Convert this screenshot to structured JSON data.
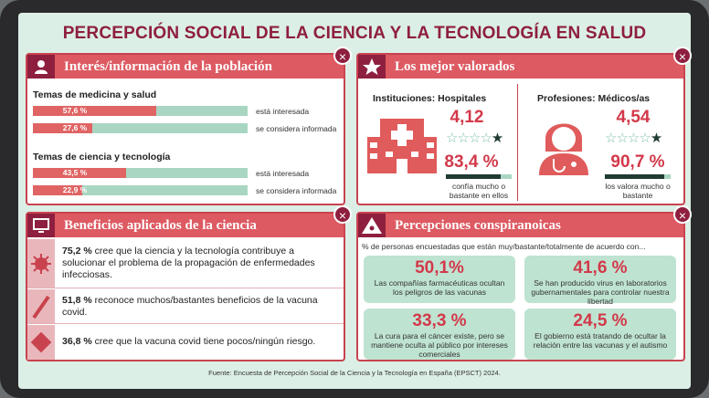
{
  "title": "PERCEPCIÓN SOCIAL DE LA CIENCIA Y LA TECNOLOGÍA EN SALUD",
  "interest": {
    "title": "Interés/información de la población",
    "groups": [
      {
        "label": "Temas de medicina y salud",
        "bars": [
          {
            "value": 57.6,
            "label": "57,6 %",
            "caption": "está interesada"
          },
          {
            "value": 27.6,
            "label": "27,6 %",
            "caption": "se considera informada"
          }
        ]
      },
      {
        "label": "Temas de ciencia y tecnología",
        "bars": [
          {
            "value": 43.5,
            "label": "43,5 %",
            "caption": "está interesada"
          },
          {
            "value": 22.9,
            "label": "22,9 %",
            "caption": "se considera informada"
          }
        ]
      }
    ]
  },
  "best": {
    "title": "Los mejor valorados",
    "items": [
      {
        "heading": "Instituciones: Hospitales",
        "score": {
          "value": 4.12,
          "label": "4,12"
        },
        "percent": {
          "value": 83.4,
          "label": "83,4 %"
        },
        "caption": "confía mucho o bastante en ellos"
      },
      {
        "heading": "Profesiones: Médicos/as",
        "score": {
          "value": 4.54,
          "label": "4,54"
        },
        "percent": {
          "value": 90.7,
          "label": "90,7 %"
        },
        "caption": "los valora mucho o bastante"
      }
    ]
  },
  "benefits": {
    "title": "Beneficios aplicados de la ciencia",
    "items": [
      {
        "percent": {
          "value": 75.2,
          "label": "75,2 %"
        },
        "text": "cree que la ciencia y la tecnología contribuye a solucionar el problema de la propagación de enfermedades infecciosas."
      },
      {
        "percent": {
          "value": 51.8,
          "label": "51,8 %"
        },
        "text": "reconoce muchos/bastantes beneficios de la vacuna covid."
      },
      {
        "percent": {
          "value": 36.8,
          "label": "36,8 %"
        },
        "text": "cree que la vacuna covid tiene pocos/ningún riesgo."
      }
    ]
  },
  "conspiracy": {
    "title": "Percepciones conspiranoicas",
    "subtitle": "% de personas encuestadas que están muy/bastante/totalmente de acuerdo con...",
    "items": [
      {
        "percent": {
          "value": 50.1,
          "label": "50,1%"
        },
        "text": "Las compañías farmacéuticas ocultan los peligros de las vacunas"
      },
      {
        "percent": {
          "value": 41.6,
          "label": "41,6 %"
        },
        "text": "Se han producido virus en laboratorios gubernamentales para controlar nuestra libertad"
      },
      {
        "percent": {
          "value": 33.3,
          "label": "33,3 %"
        },
        "text": "La cura para el cáncer existe, pero se mantiene oculta al público por intereses comerciales"
      },
      {
        "percent": {
          "value": 24.5,
          "label": "24,5 %"
        },
        "text": "El gobierno está tratando de ocultar la relación entre las vacunas y el autismo"
      }
    ]
  },
  "source": "Fuente: Encuesta de Percepción Social de la Ciencia y la Tecnología en España (EPSCT) 2024."
}
